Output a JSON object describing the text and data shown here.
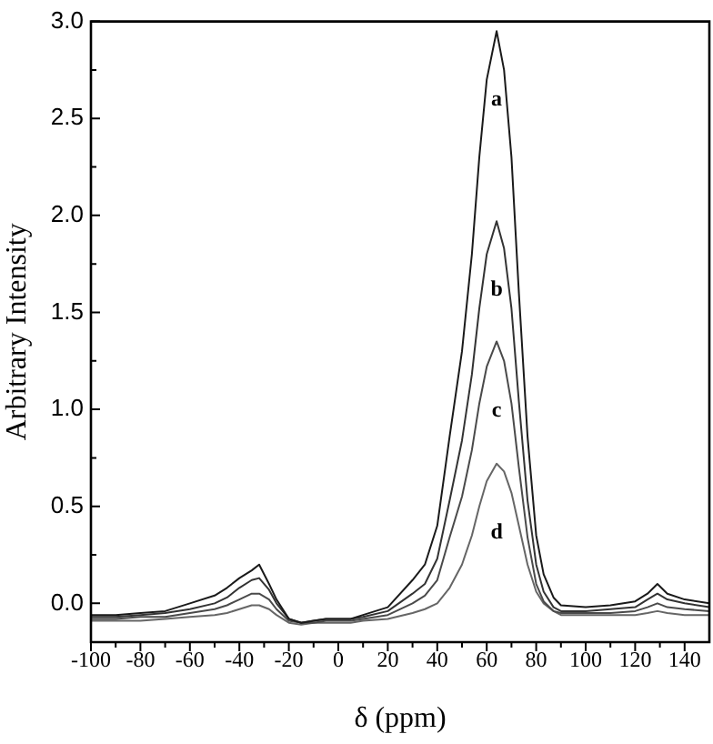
{
  "chart_data": {
    "type": "line",
    "xlabel": "δ (ppm)",
    "ylabel": "Arbitrary Intensity",
    "x": [
      -100,
      -90,
      -80,
      -70,
      -60,
      -50,
      -45,
      -40,
      -35,
      -32,
      -28,
      -25,
      -20,
      -15,
      -10,
      -5,
      0,
      5,
      10,
      20,
      30,
      35,
      40,
      45,
      50,
      54,
      57,
      60,
      64,
      67,
      70,
      73,
      76.5,
      80,
      83,
      87,
      90,
      100,
      110,
      120,
      125,
      129,
      133,
      140,
      150
    ],
    "series": [
      {
        "name": "a",
        "color": "#1a1a1a",
        "values": [
          -0.06,
          -0.06,
          -0.05,
          -0.04,
          0.0,
          0.04,
          0.08,
          0.13,
          0.17,
          0.2,
          0.1,
          0.02,
          -0.08,
          -0.1,
          -0.09,
          -0.08,
          -0.08,
          -0.08,
          -0.06,
          -0.02,
          0.12,
          0.2,
          0.4,
          0.86,
          1.3,
          1.8,
          2.3,
          2.7,
          2.95,
          2.75,
          2.3,
          1.6,
          0.86,
          0.35,
          0.15,
          0.03,
          -0.01,
          -0.02,
          -0.01,
          0.01,
          0.05,
          0.1,
          0.05,
          0.02,
          0.0
        ]
      },
      {
        "name": "b",
        "color": "#333333",
        "values": [
          -0.07,
          -0.07,
          -0.06,
          -0.05,
          -0.03,
          0.0,
          0.03,
          0.08,
          0.12,
          0.13,
          0.07,
          0.0,
          -0.08,
          -0.1,
          -0.09,
          -0.08,
          -0.08,
          -0.08,
          -0.07,
          -0.04,
          0.05,
          0.1,
          0.23,
          0.53,
          0.84,
          1.18,
          1.52,
          1.8,
          1.97,
          1.83,
          1.52,
          1.04,
          0.53,
          0.2,
          0.06,
          -0.02,
          -0.04,
          -0.04,
          -0.03,
          -0.02,
          0.02,
          0.05,
          0.02,
          0.0,
          -0.02
        ]
      },
      {
        "name": "c",
        "color": "#4a4a4a",
        "values": [
          -0.08,
          -0.08,
          -0.07,
          -0.07,
          -0.05,
          -0.03,
          -0.01,
          0.02,
          0.05,
          0.05,
          0.02,
          -0.03,
          -0.09,
          -0.1,
          -0.1,
          -0.09,
          -0.09,
          -0.09,
          -0.08,
          -0.06,
          0.0,
          0.04,
          0.12,
          0.34,
          0.55,
          0.79,
          1.03,
          1.22,
          1.35,
          1.25,
          1.03,
          0.7,
          0.34,
          0.1,
          0.01,
          -0.04,
          -0.05,
          -0.05,
          -0.05,
          -0.04,
          -0.02,
          0.0,
          -0.02,
          -0.03,
          -0.04
        ]
      },
      {
        "name": "d",
        "color": "#666666",
        "values": [
          -0.09,
          -0.09,
          -0.09,
          -0.08,
          -0.07,
          -0.06,
          -0.05,
          -0.03,
          -0.01,
          -0.01,
          -0.03,
          -0.06,
          -0.1,
          -0.11,
          -0.1,
          -0.1,
          -0.1,
          -0.1,
          -0.09,
          -0.08,
          -0.05,
          -0.03,
          0.0,
          0.08,
          0.2,
          0.35,
          0.5,
          0.63,
          0.72,
          0.68,
          0.57,
          0.4,
          0.2,
          0.06,
          0.0,
          -0.04,
          -0.06,
          -0.06,
          -0.06,
          -0.06,
          -0.05,
          -0.04,
          -0.05,
          -0.06,
          -0.06
        ]
      }
    ],
    "xlim": [
      -100,
      150
    ],
    "xticks": [
      -100,
      -80,
      -60,
      -40,
      -20,
      0,
      20,
      40,
      60,
      80,
      100,
      120,
      140
    ],
    "ylim": [
      -0.2,
      3.0
    ],
    "yticks": [
      {
        "value": 0,
        "label": "0.0"
      },
      {
        "value": 0.5,
        "label": "0.5"
      },
      {
        "value": 1,
        "label": "1.0"
      },
      {
        "value": 1.5,
        "label": "1.5"
      },
      {
        "value": 2,
        "label": "2.0"
      },
      {
        "value": 2.5,
        "label": "2.5"
      },
      {
        "value": 3,
        "label": "3.0"
      }
    ],
    "grid": false,
    "legend": false,
    "marker": "none",
    "line_style": "solid"
  }
}
